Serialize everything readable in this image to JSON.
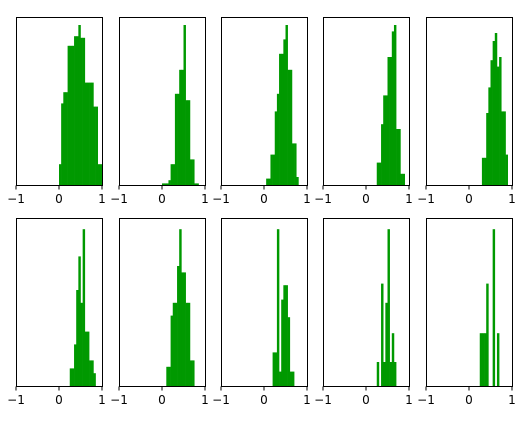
{
  "figure": {
    "rows": 2,
    "cols": 5,
    "bar_color": "#009900"
  },
  "chart_data": [
    {
      "type": "bar",
      "position": "row-1-col-1",
      "xlim": [
        -1,
        1
      ],
      "xticks": [
        "−1",
        "0",
        "1"
      ],
      "yticks": [],
      "bins": [
        [
          0.0,
          0.05,
          0.13
        ],
        [
          0.05,
          0.1,
          0.51
        ],
        [
          0.1,
          0.15,
          0.58
        ],
        [
          0.15,
          0.2,
          0.58
        ],
        [
          0.2,
          0.25,
          0.87
        ],
        [
          0.25,
          0.3,
          0.87
        ],
        [
          0.3,
          0.35,
          0.87
        ],
        [
          0.35,
          0.4,
          0.93
        ],
        [
          0.4,
          0.45,
          0.93
        ],
        [
          0.45,
          0.5,
          1.0
        ],
        [
          0.5,
          0.55,
          0.92
        ],
        [
          0.55,
          0.6,
          0.92
        ],
        [
          0.6,
          0.65,
          0.64
        ],
        [
          0.65,
          0.7,
          0.64
        ],
        [
          0.7,
          0.75,
          0.64
        ],
        [
          0.75,
          0.8,
          0.64
        ],
        [
          0.8,
          0.85,
          0.49
        ],
        [
          0.85,
          0.9,
          0.49
        ],
        [
          0.9,
          0.95,
          0.13
        ],
        [
          0.95,
          1.0,
          0.13
        ]
      ]
    },
    {
      "type": "bar",
      "position": "row-1-col-2",
      "xlim": [
        -1,
        1
      ],
      "xticks": [
        "−1",
        "0",
        "1"
      ],
      "yticks": [],
      "bins": [
        [
          0.0,
          0.05,
          0.01
        ],
        [
          0.05,
          0.1,
          0.01
        ],
        [
          0.1,
          0.15,
          0.01
        ],
        [
          0.15,
          0.2,
          0.03
        ],
        [
          0.2,
          0.25,
          0.13
        ],
        [
          0.25,
          0.3,
          0.13
        ],
        [
          0.3,
          0.35,
          0.57
        ],
        [
          0.35,
          0.4,
          0.57
        ],
        [
          0.4,
          0.45,
          0.72
        ],
        [
          0.45,
          0.5,
          0.72
        ],
        [
          0.5,
          0.55,
          1.0
        ],
        [
          0.55,
          0.6,
          0.53
        ],
        [
          0.6,
          0.65,
          0.53
        ],
        [
          0.65,
          0.7,
          0.16
        ],
        [
          0.7,
          0.75,
          0.16
        ],
        [
          0.75,
          0.8,
          0.01
        ],
        [
          0.8,
          0.85,
          0.01
        ]
      ]
    },
    {
      "type": "bar",
      "position": "row-1-col-3",
      "xlim": [
        -1,
        1
      ],
      "xticks": [
        "−1",
        "0",
        "1"
      ],
      "yticks": [],
      "bins": [
        [
          0.05,
          0.1,
          0.04
        ],
        [
          0.1,
          0.15,
          0.04
        ],
        [
          0.15,
          0.2,
          0.19
        ],
        [
          0.2,
          0.25,
          0.19
        ],
        [
          0.25,
          0.3,
          0.46
        ],
        [
          0.3,
          0.35,
          0.57
        ],
        [
          0.35,
          0.4,
          0.82
        ],
        [
          0.4,
          0.45,
          0.82
        ],
        [
          0.45,
          0.5,
          0.91
        ],
        [
          0.5,
          0.55,
          1.0
        ],
        [
          0.55,
          0.6,
          0.72
        ],
        [
          0.6,
          0.65,
          0.72
        ],
        [
          0.65,
          0.7,
          0.26
        ],
        [
          0.7,
          0.75,
          0.26
        ],
        [
          0.75,
          0.8,
          0.05
        ]
      ]
    },
    {
      "type": "bar",
      "position": "row-1-col-4",
      "xlim": [
        -1,
        1
      ],
      "xticks": [
        "−1",
        "0",
        "1"
      ],
      "yticks": [],
      "bins": [
        [
          0.25,
          0.3,
          0.14
        ],
        [
          0.3,
          0.35,
          0.14
        ],
        [
          0.35,
          0.4,
          0.38
        ],
        [
          0.4,
          0.45,
          0.56
        ],
        [
          0.45,
          0.5,
          0.56
        ],
        [
          0.5,
          0.55,
          0.8
        ],
        [
          0.55,
          0.6,
          0.8
        ],
        [
          0.6,
          0.65,
          0.96
        ],
        [
          0.65,
          0.7,
          1.0
        ],
        [
          0.7,
          0.75,
          0.35
        ],
        [
          0.75,
          0.8,
          0.35
        ],
        [
          0.8,
          0.85,
          0.07
        ],
        [
          0.85,
          0.9,
          0.07
        ]
      ]
    },
    {
      "type": "bar",
      "position": "row-1-col-5",
      "xlim": [
        -1,
        1
      ],
      "xticks": [
        "−1",
        "0",
        "1"
      ],
      "yticks": [],
      "bins": [
        [
          0.3,
          0.35,
          0.17
        ],
        [
          0.35,
          0.4,
          0.17
        ],
        [
          0.4,
          0.45,
          0.45
        ],
        [
          0.45,
          0.5,
          0.61
        ],
        [
          0.5,
          0.55,
          0.78
        ],
        [
          0.55,
          0.6,
          0.9
        ],
        [
          0.6,
          0.65,
          0.95
        ],
        [
          0.65,
          0.7,
          0.74
        ],
        [
          0.7,
          0.75,
          0.8
        ],
        [
          0.75,
          0.8,
          0.46
        ],
        [
          0.8,
          0.85,
          0.46
        ],
        [
          0.85,
          0.9,
          0.19
        ]
      ]
    },
    {
      "type": "bar",
      "position": "row-2-col-1",
      "xlim": [
        -1,
        1
      ],
      "xticks": [
        "−1",
        "0",
        "1"
      ],
      "yticks": [],
      "bins": [
        [
          0.25,
          0.3,
          0.11
        ],
        [
          0.3,
          0.35,
          0.11
        ],
        [
          0.35,
          0.4,
          0.26
        ],
        [
          0.4,
          0.45,
          0.6
        ],
        [
          0.45,
          0.5,
          0.81
        ],
        [
          0.5,
          0.55,
          0.52
        ],
        [
          0.55,
          0.6,
          0.98
        ],
        [
          0.6,
          0.65,
          0.34
        ],
        [
          0.65,
          0.7,
          0.34
        ],
        [
          0.7,
          0.75,
          0.16
        ],
        [
          0.75,
          0.8,
          0.16
        ],
        [
          0.8,
          0.85,
          0.08
        ]
      ]
    },
    {
      "type": "bar",
      "position": "row-2-col-2",
      "xlim": [
        -1,
        1
      ],
      "xticks": [
        "−1",
        "0",
        "1"
      ],
      "yticks": [],
      "bins": [
        [
          0.1,
          0.15,
          0.12
        ],
        [
          0.15,
          0.2,
          0.12
        ],
        [
          0.2,
          0.25,
          0.44
        ],
        [
          0.25,
          0.3,
          0.52
        ],
        [
          0.3,
          0.35,
          0.52
        ],
        [
          0.35,
          0.4,
          0.75
        ],
        [
          0.4,
          0.45,
          0.98
        ],
        [
          0.45,
          0.5,
          0.71
        ],
        [
          0.5,
          0.55,
          0.71
        ],
        [
          0.55,
          0.6,
          0.52
        ],
        [
          0.6,
          0.65,
          0.52
        ],
        [
          0.65,
          0.7,
          0.16
        ],
        [
          0.7,
          0.75,
          0.16
        ]
      ]
    },
    {
      "type": "bar",
      "position": "row-2-col-3",
      "xlim": [
        -1,
        1
      ],
      "xticks": [
        "−1",
        "0",
        "1"
      ],
      "yticks": [],
      "bins": [
        [
          0.2,
          0.25,
          0.21
        ],
        [
          0.25,
          0.3,
          0.21
        ],
        [
          0.3,
          0.35,
          0.98
        ],
        [
          0.35,
          0.4,
          0.09
        ],
        [
          0.4,
          0.45,
          0.54
        ],
        [
          0.45,
          0.5,
          0.63
        ],
        [
          0.5,
          0.55,
          0.63
        ],
        [
          0.55,
          0.6,
          0.43
        ],
        [
          0.6,
          0.65,
          0.09
        ],
        [
          0.65,
          0.7,
          0.09
        ]
      ]
    },
    {
      "type": "bar",
      "position": "row-2-col-4",
      "xlim": [
        -1,
        1
      ],
      "xticks": [
        "−1",
        "0",
        "1"
      ],
      "yticks": [],
      "bins": [
        [
          0.25,
          0.3,
          0.15
        ],
        [
          0.35,
          0.4,
          0.64
        ],
        [
          0.4,
          0.45,
          0.15
        ],
        [
          0.45,
          0.5,
          0.52
        ],
        [
          0.5,
          0.55,
          0.98
        ],
        [
          0.55,
          0.6,
          0.15
        ],
        [
          0.6,
          0.65,
          0.33
        ],
        [
          0.65,
          0.7,
          0.15
        ]
      ]
    },
    {
      "type": "bar",
      "position": "row-2-col-5",
      "xlim": [
        -1,
        1
      ],
      "xticks": [
        "−1",
        "0",
        "1"
      ],
      "yticks": [],
      "bins": [
        [
          0.25,
          0.3,
          0.33
        ],
        [
          0.3,
          0.35,
          0.33
        ],
        [
          0.35,
          0.4,
          0.33
        ],
        [
          0.4,
          0.45,
          0.64
        ],
        [
          0.55,
          0.6,
          0.98
        ],
        [
          0.65,
          0.7,
          0.33
        ]
      ]
    }
  ]
}
